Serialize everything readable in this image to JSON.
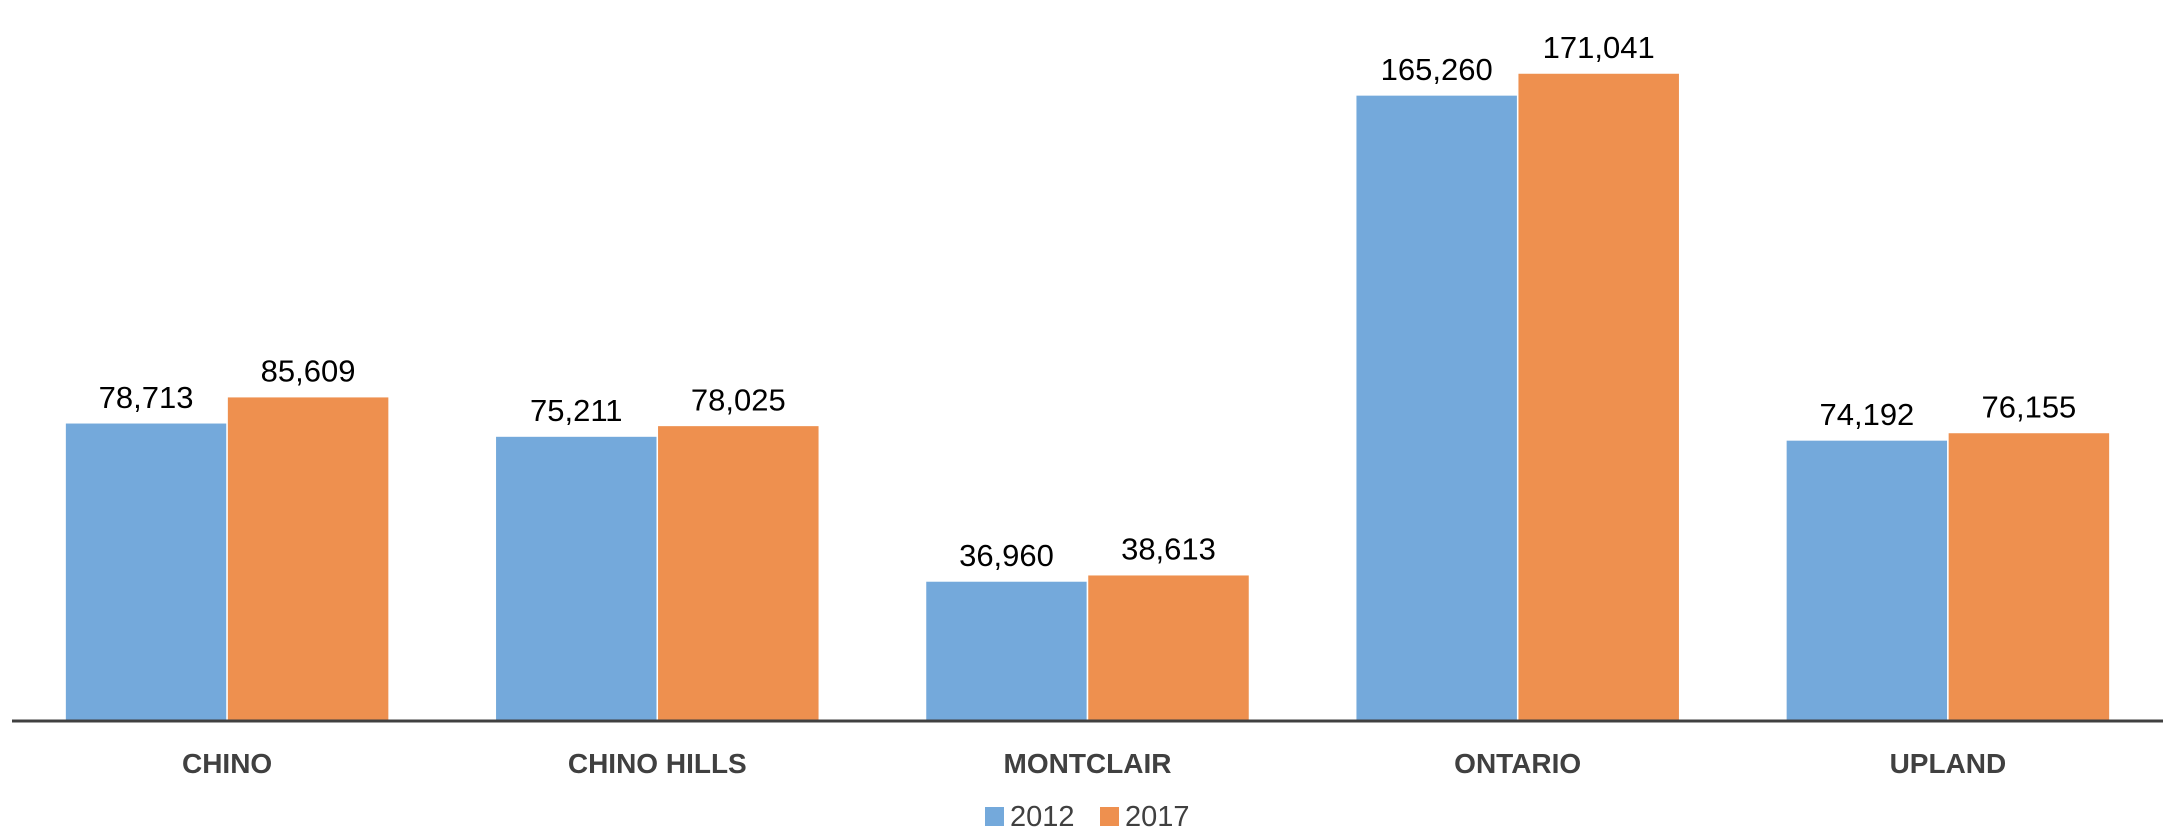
{
  "chart_data": {
    "type": "bar",
    "title": "",
    "xlabel": "",
    "ylabel": "",
    "categories": [
      "CHINO",
      "CHINO HILLS",
      "MONTCLAIR",
      "ONTARIO",
      "UPLAND"
    ],
    "series": [
      {
        "name": "2012",
        "color": "#74A9DB",
        "values": [
          78713,
          75211,
          36960,
          165260,
          74192
        ],
        "labels": [
          "78,713",
          "75,211",
          "36,960",
          "165,260",
          "74,192"
        ]
      },
      {
        "name": "2017",
        "color": "#EE904F",
        "values": [
          85609,
          78025,
          38613,
          171041,
          76155
        ],
        "labels": [
          "85,609",
          "78,025",
          "38,613",
          "171,041",
          "76,155"
        ]
      }
    ],
    "ylim": [
      0,
      180000
    ],
    "grid": false,
    "legend_position": "bottom-center",
    "axis_color": "#404040"
  }
}
